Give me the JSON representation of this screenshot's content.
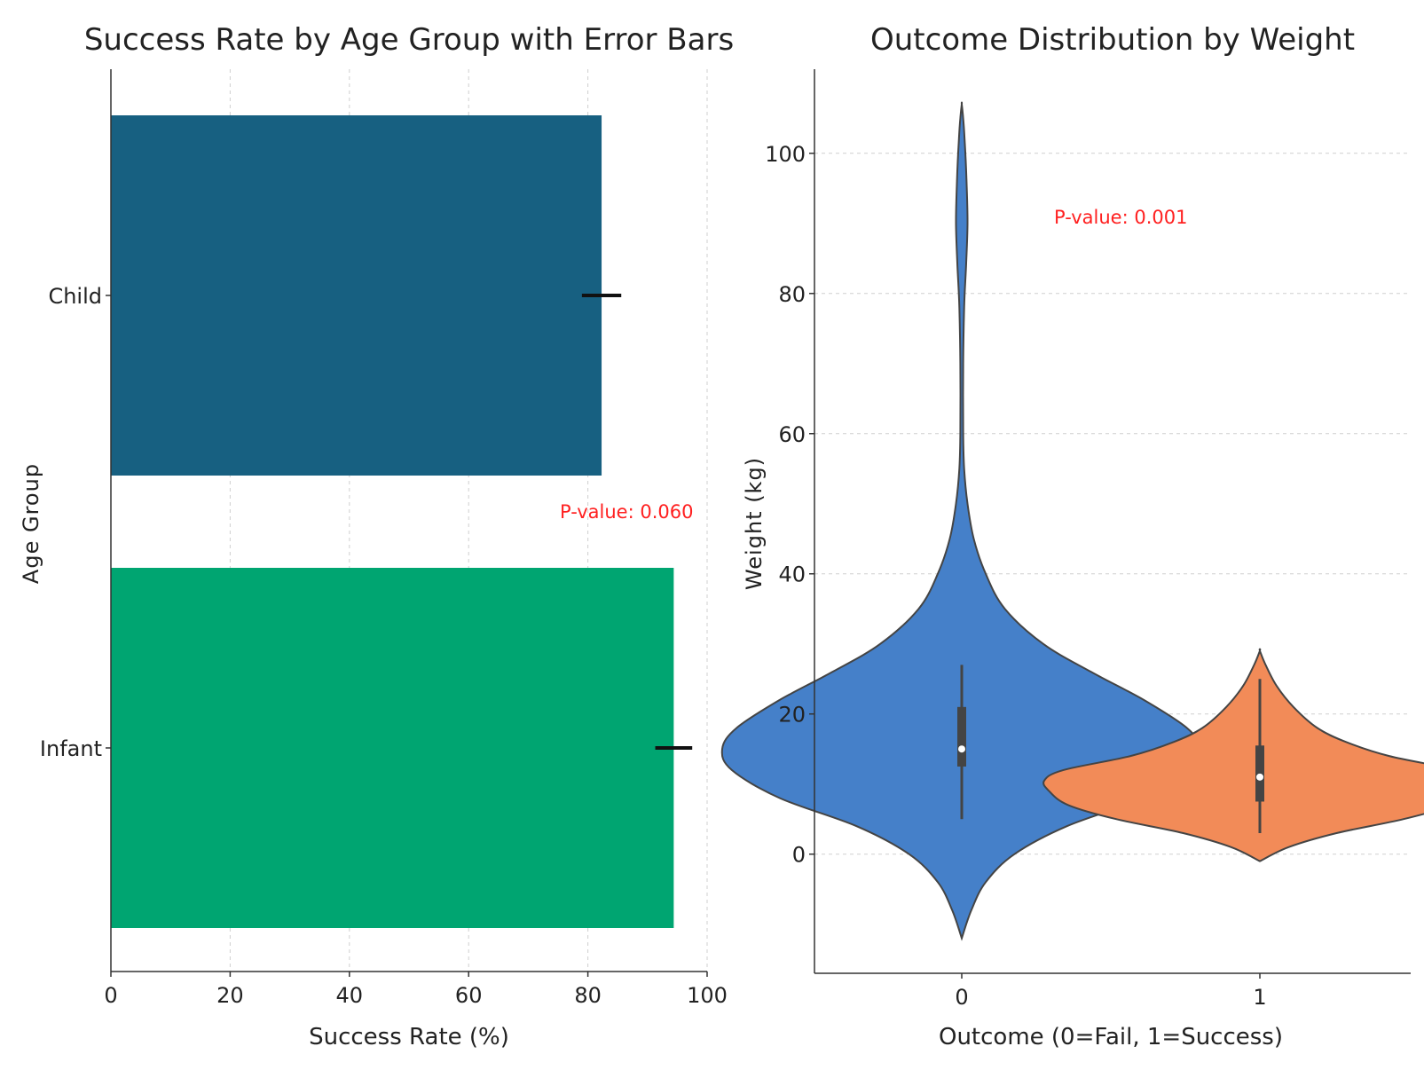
{
  "chart_data": [
    {
      "type": "bar",
      "orientation": "horizontal",
      "title": "Success Rate by Age Group with Error Bars",
      "xlabel": "Success Rate (%)",
      "ylabel": "Age Group",
      "xlim": [
        0,
        100
      ],
      "xticks": [
        "0",
        "20",
        "40",
        "60",
        "80",
        "100"
      ],
      "grid": "x, dashed",
      "categories": [
        "Child",
        "Infant"
      ],
      "values": [
        82.3,
        94.4
      ],
      "errors": [
        3.3,
        3.1
      ],
      "colors": [
        "#176081",
        "#00a571"
      ],
      "annotation": {
        "text": "P-value: 0.060",
        "x": 80,
        "y": 0.5
      }
    },
    {
      "type": "violin",
      "title": "Outcome Distribution by Weight",
      "xlabel": "Outcome (0=Fail, 1=Success)",
      "ylabel": "Weight (kg)",
      "ylim": [
        -17,
        112
      ],
      "yticks": [
        "0",
        "20",
        "40",
        "60",
        "80",
        "100"
      ],
      "grid": "y, dashed",
      "categories": [
        "0",
        "1"
      ],
      "colors": [
        "#4580c9",
        "#f28b58"
      ],
      "series": [
        {
          "name": "0",
          "min": -12,
          "max": 107,
          "whisker_low": 5,
          "q1": 12.5,
          "median": 15,
          "q3": 21,
          "whisker_high": 27,
          "density_profile": [
            [
              -12,
              0.0
            ],
            [
              -8,
              0.02
            ],
            [
              -4,
              0.05
            ],
            [
              0,
              0.11
            ],
            [
              4,
              0.22
            ],
            [
              8,
              0.38
            ],
            [
              12,
              0.48
            ],
            [
              15,
              0.5
            ],
            [
              18,
              0.47
            ],
            [
              22,
              0.38
            ],
            [
              26,
              0.27
            ],
            [
              30,
              0.17
            ],
            [
              35,
              0.09
            ],
            [
              40,
              0.05
            ],
            [
              45,
              0.025
            ],
            [
              50,
              0.012
            ],
            [
              55,
              0.005
            ],
            [
              60,
              0.003
            ],
            [
              70,
              0.003
            ],
            [
              78,
              0.005
            ],
            [
              84,
              0.009
            ],
            [
              90,
              0.012
            ],
            [
              96,
              0.01
            ],
            [
              102,
              0.006
            ],
            [
              105,
              0.003
            ],
            [
              107,
              0.0
            ]
          ]
        },
        {
          "name": "1",
          "min": -1,
          "max": 29,
          "whisker_low": 3,
          "q1": 7.5,
          "median": 11,
          "q3": 15.5,
          "whisker_high": 25,
          "density_profile": [
            [
              -1,
              0.0
            ],
            [
              1,
              0.06
            ],
            [
              3,
              0.16
            ],
            [
              5,
              0.3
            ],
            [
              7,
              0.4
            ],
            [
              9,
              0.44
            ],
            [
              10.5,
              0.45
            ],
            [
              12,
              0.41
            ],
            [
              14,
              0.27
            ],
            [
              16,
              0.18
            ],
            [
              18,
              0.12
            ],
            [
              21,
              0.07
            ],
            [
              24,
              0.035
            ],
            [
              27,
              0.012
            ],
            [
              29,
              0.0
            ]
          ]
        }
      ],
      "annotation": {
        "text": "P-value: 0.001",
        "x": 0.5,
        "y": 91
      }
    }
  ]
}
